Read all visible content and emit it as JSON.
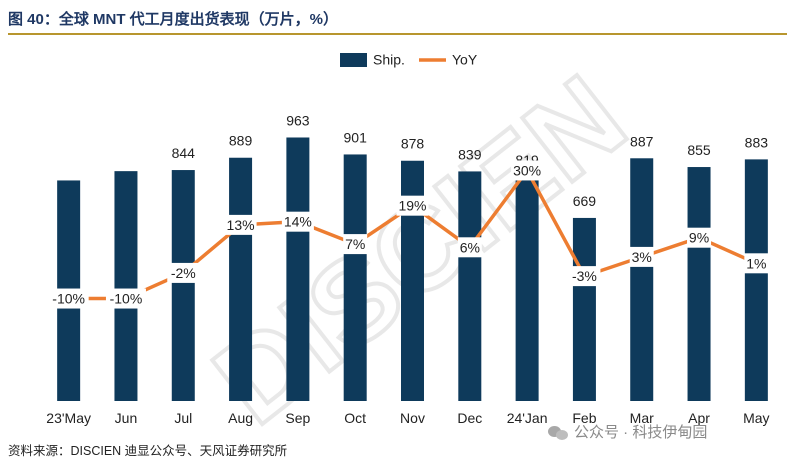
{
  "title": "图 40：全球 MNT 代工月度出货表现（万片，%）",
  "source": "资料来源：DISCIEN 迪显公众号、天风证券研究所",
  "credit": "公众号 · 科技伊甸园",
  "watermark": "DISCIEN",
  "colors": {
    "bar": "#0e3a5b",
    "line": "#ed7d31",
    "title": "#1f3864",
    "rule": "#b8962e"
  },
  "chart_data": {
    "type": "bar",
    "categories": [
      "23'May",
      "Jun",
      "Jul",
      "Aug",
      "Sep",
      "Oct",
      "Nov",
      "Dec",
      "24'Jan",
      "Feb",
      "Mar",
      "Apr",
      "May"
    ],
    "series": [
      {
        "name": "Ship.",
        "type": "bar",
        "values": [
          806,
          840,
          844,
          889,
          963,
          901,
          878,
          839,
          819,
          669,
          887,
          855,
          883
        ],
        "labels": [
          "",
          "",
          "844",
          "889",
          "963",
          "901",
          "878",
          "839",
          "819",
          "669",
          "887",
          "855",
          "883"
        ]
      },
      {
        "name": "YoY",
        "type": "line",
        "values": [
          -10,
          -10,
          -2,
          13,
          14,
          7,
          19,
          6,
          30,
          -3,
          3,
          9,
          1
        ],
        "labels": [
          "-10%",
          "-10%",
          "-2%",
          "13%",
          "14%",
          "7%",
          "19%",
          "6%",
          "30%",
          "-3%",
          "3%",
          "9%",
          "1%"
        ]
      }
    ],
    "ylim": [
      0,
      1100
    ],
    "y2lim": [
      -42,
      52
    ],
    "legend": "top-center",
    "grid": false
  }
}
